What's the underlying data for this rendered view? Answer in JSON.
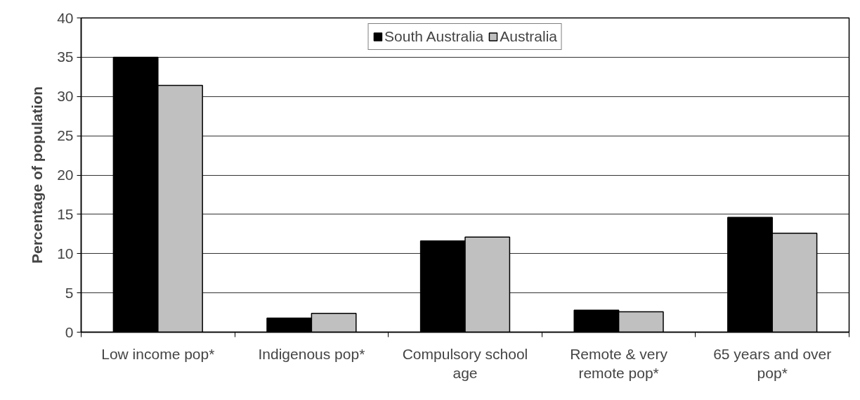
{
  "chart_data": {
    "type": "bar",
    "ylabel": "Percentage of population",
    "categories": [
      "Low income pop*",
      "Indigenous pop*",
      "Compulsory school age",
      "Remote & very remote pop*",
      "65 years and over pop*"
    ],
    "series": [
      {
        "name": "South Australia",
        "color": "#000000",
        "values": [
          35.0,
          1.8,
          11.6,
          2.8,
          14.6
        ]
      },
      {
        "name": "Australia",
        "color": "#c0c0c0",
        "values": [
          31.4,
          2.4,
          12.1,
          2.6,
          12.6
        ]
      }
    ],
    "ylim": [
      0,
      40
    ],
    "yticks": [
      0,
      5,
      10,
      15,
      20,
      25,
      30,
      35,
      40
    ],
    "grid": "y",
    "legend": "top"
  }
}
